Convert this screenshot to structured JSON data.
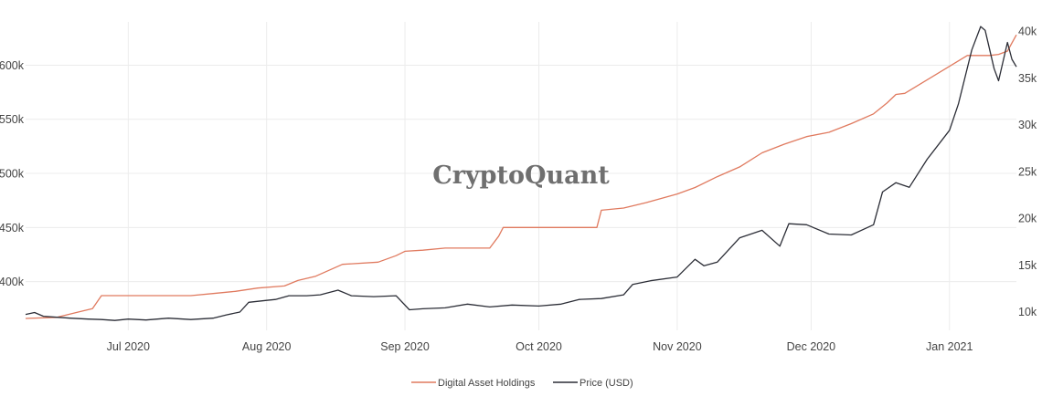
{
  "chart_data": {
    "type": "line",
    "watermark": "CryptoQuant",
    "x_ticks": [
      "Jul 2020",
      "Aug 2020",
      "Sep 2020",
      "Oct 2020",
      "Nov 2020",
      "Dec 2020",
      "Jan 2021"
    ],
    "x_range": [
      "2020-06-08",
      "2021-01-16"
    ],
    "y_left": {
      "ticks": [
        "400k",
        "450k",
        "500k",
        "550k",
        "600k"
      ],
      "range": [
        355000,
        640000
      ]
    },
    "y_right": {
      "ticks": [
        "10k",
        "15k",
        "20k",
        "25k",
        "30k",
        "35k",
        "40k"
      ],
      "range": [
        8000,
        41000
      ]
    },
    "grid": true,
    "legend_position": "bottom-center",
    "series": [
      {
        "name": "Digital Asset Holdings",
        "axis": "left",
        "color": "#e07a5f",
        "x": [
          "2020-06-08",
          "2020-06-15",
          "2020-06-20",
          "2020-06-23",
          "2020-06-25",
          "2020-07-15",
          "2020-07-20",
          "2020-07-25",
          "2020-07-30",
          "2020-08-05",
          "2020-08-08",
          "2020-08-12",
          "2020-08-18",
          "2020-08-20",
          "2020-08-26",
          "2020-08-30",
          "2020-09-01",
          "2020-09-05",
          "2020-09-10",
          "2020-09-20",
          "2020-09-22",
          "2020-09-23",
          "2020-10-01",
          "2020-10-10",
          "2020-10-14",
          "2020-10-15",
          "2020-10-20",
          "2020-10-25",
          "2020-11-01",
          "2020-11-05",
          "2020-11-10",
          "2020-11-15",
          "2020-11-20",
          "2020-11-25",
          "2020-11-30",
          "2020-12-05",
          "2020-12-10",
          "2020-12-15",
          "2020-12-18",
          "2020-12-20",
          "2020-12-22",
          "2021-01-05",
          "2021-01-10",
          "2021-01-12",
          "2021-01-14",
          "2021-01-16"
        ],
        "values": [
          366000,
          367000,
          372000,
          375000,
          387000,
          387000,
          389000,
          391000,
          394000,
          396000,
          401000,
          405000,
          416000,
          416500,
          418000,
          424000,
          428000,
          429000,
          431000,
          431000,
          442000,
          450000,
          450000,
          450000,
          450000,
          466000,
          468000,
          473000,
          481000,
          487000,
          497000,
          506000,
          519000,
          527000,
          534000,
          538000,
          546000,
          555000,
          565000,
          573000,
          574000,
          609000,
          609000,
          610000,
          613000,
          628000
        ]
      },
      {
        "name": "Price (USD)",
        "axis": "right",
        "color": "#2b2d36",
        "x": [
          "2020-06-08",
          "2020-06-10",
          "2020-06-12",
          "2020-06-15",
          "2020-06-18",
          "2020-06-22",
          "2020-06-25",
          "2020-06-28",
          "2020-07-01",
          "2020-07-05",
          "2020-07-10",
          "2020-07-15",
          "2020-07-20",
          "2020-07-23",
          "2020-07-26",
          "2020-07-28",
          "2020-08-01",
          "2020-08-03",
          "2020-08-06",
          "2020-08-10",
          "2020-08-13",
          "2020-08-17",
          "2020-08-20",
          "2020-08-25",
          "2020-08-30",
          "2020-09-02",
          "2020-09-05",
          "2020-09-10",
          "2020-09-15",
          "2020-09-20",
          "2020-09-25",
          "2020-10-01",
          "2020-10-06",
          "2020-10-10",
          "2020-10-15",
          "2020-10-20",
          "2020-10-22",
          "2020-10-26",
          "2020-11-01",
          "2020-11-05",
          "2020-11-07",
          "2020-11-10",
          "2020-11-15",
          "2020-11-20",
          "2020-11-24",
          "2020-11-26",
          "2020-11-30",
          "2020-12-05",
          "2020-12-10",
          "2020-12-15",
          "2020-12-17",
          "2020-12-20",
          "2020-12-23",
          "2020-12-27",
          "2021-01-01",
          "2021-01-03",
          "2021-01-06",
          "2021-01-08",
          "2021-01-09",
          "2021-01-11",
          "2021-01-12",
          "2021-01-14",
          "2021-01-15",
          "2021-01-16"
        ],
        "values": [
          9700,
          9900,
          9500,
          9400,
          9300,
          9200,
          9150,
          9050,
          9200,
          9100,
          9300,
          9150,
          9300,
          9650,
          9950,
          11000,
          11200,
          11300,
          11700,
          11700,
          11800,
          12300,
          11700,
          11600,
          11700,
          10200,
          10300,
          10400,
          10800,
          10500,
          10700,
          10600,
          10800,
          11300,
          11400,
          11800,
          12900,
          13300,
          13700,
          15600,
          14900,
          15300,
          17900,
          18700,
          17000,
          19400,
          19300,
          18300,
          18200,
          19300,
          22800,
          23800,
          23300,
          26300,
          29400,
          32200,
          38000,
          40500,
          40100,
          36000,
          34700,
          38800,
          37000,
          36200
        ]
      }
    ]
  }
}
